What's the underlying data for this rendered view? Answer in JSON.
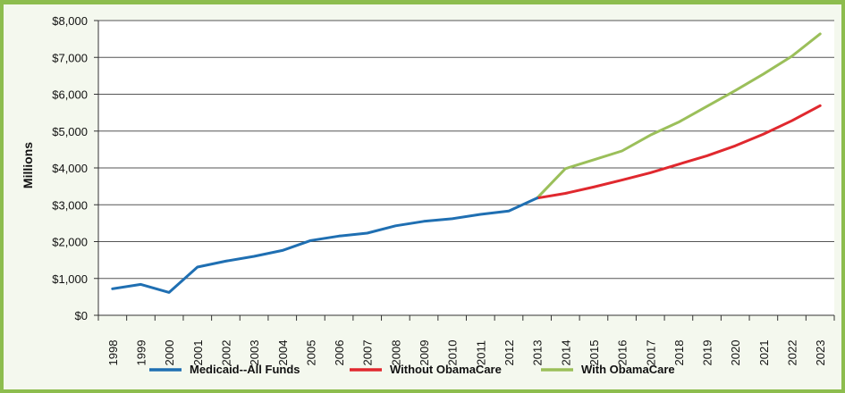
{
  "chart_data": {
    "type": "line",
    "title": "",
    "xlabel": "",
    "ylabel": "Millions",
    "ylim": [
      0,
      8000
    ],
    "y_ticks": [
      0,
      1000,
      2000,
      3000,
      4000,
      5000,
      6000,
      7000,
      8000
    ],
    "y_tick_labels": [
      "$0",
      "$1,000",
      "$2,000",
      "$3,000",
      "$4,000",
      "$5,000",
      "$6,000",
      "$7,000",
      "$8,000"
    ],
    "grid": "horizontal",
    "legend_position": "bottom",
    "categories": [
      "1998",
      "1999",
      "2000",
      "2001",
      "2002",
      "2003",
      "2004",
      "2005",
      "2006",
      "2007",
      "2008",
      "2009",
      "2010",
      "2011",
      "2012",
      "2013",
      "2014",
      "2015",
      "2016",
      "2017",
      "2018",
      "2019",
      "2020",
      "2021",
      "2022",
      "2023"
    ],
    "series": [
      {
        "name": "Medicaid--All Funds",
        "color": "#1f6fb2",
        "values": [
          720,
          840,
          620,
          1310,
          1470,
          1600,
          1760,
          2030,
          2150,
          2230,
          2430,
          2550,
          2620,
          2740,
          2830,
          3180,
          null,
          null,
          null,
          null,
          null,
          null,
          null,
          null,
          null,
          null
        ]
      },
      {
        "name": "Without ObamaCare",
        "color": "#e0282e",
        "values": [
          null,
          null,
          null,
          null,
          null,
          null,
          null,
          null,
          null,
          null,
          null,
          null,
          null,
          null,
          null,
          3180,
          3310,
          3480,
          3670,
          3870,
          4100,
          4330,
          4600,
          4920,
          5280,
          5690
        ]
      },
      {
        "name": "With ObamaCare",
        "color": "#9bbf5a",
        "values": [
          null,
          null,
          null,
          null,
          null,
          null,
          null,
          null,
          null,
          null,
          null,
          null,
          null,
          null,
          null,
          3180,
          3980,
          4220,
          4460,
          4890,
          5240,
          5670,
          6100,
          6550,
          7030,
          7640
        ]
      }
    ]
  }
}
